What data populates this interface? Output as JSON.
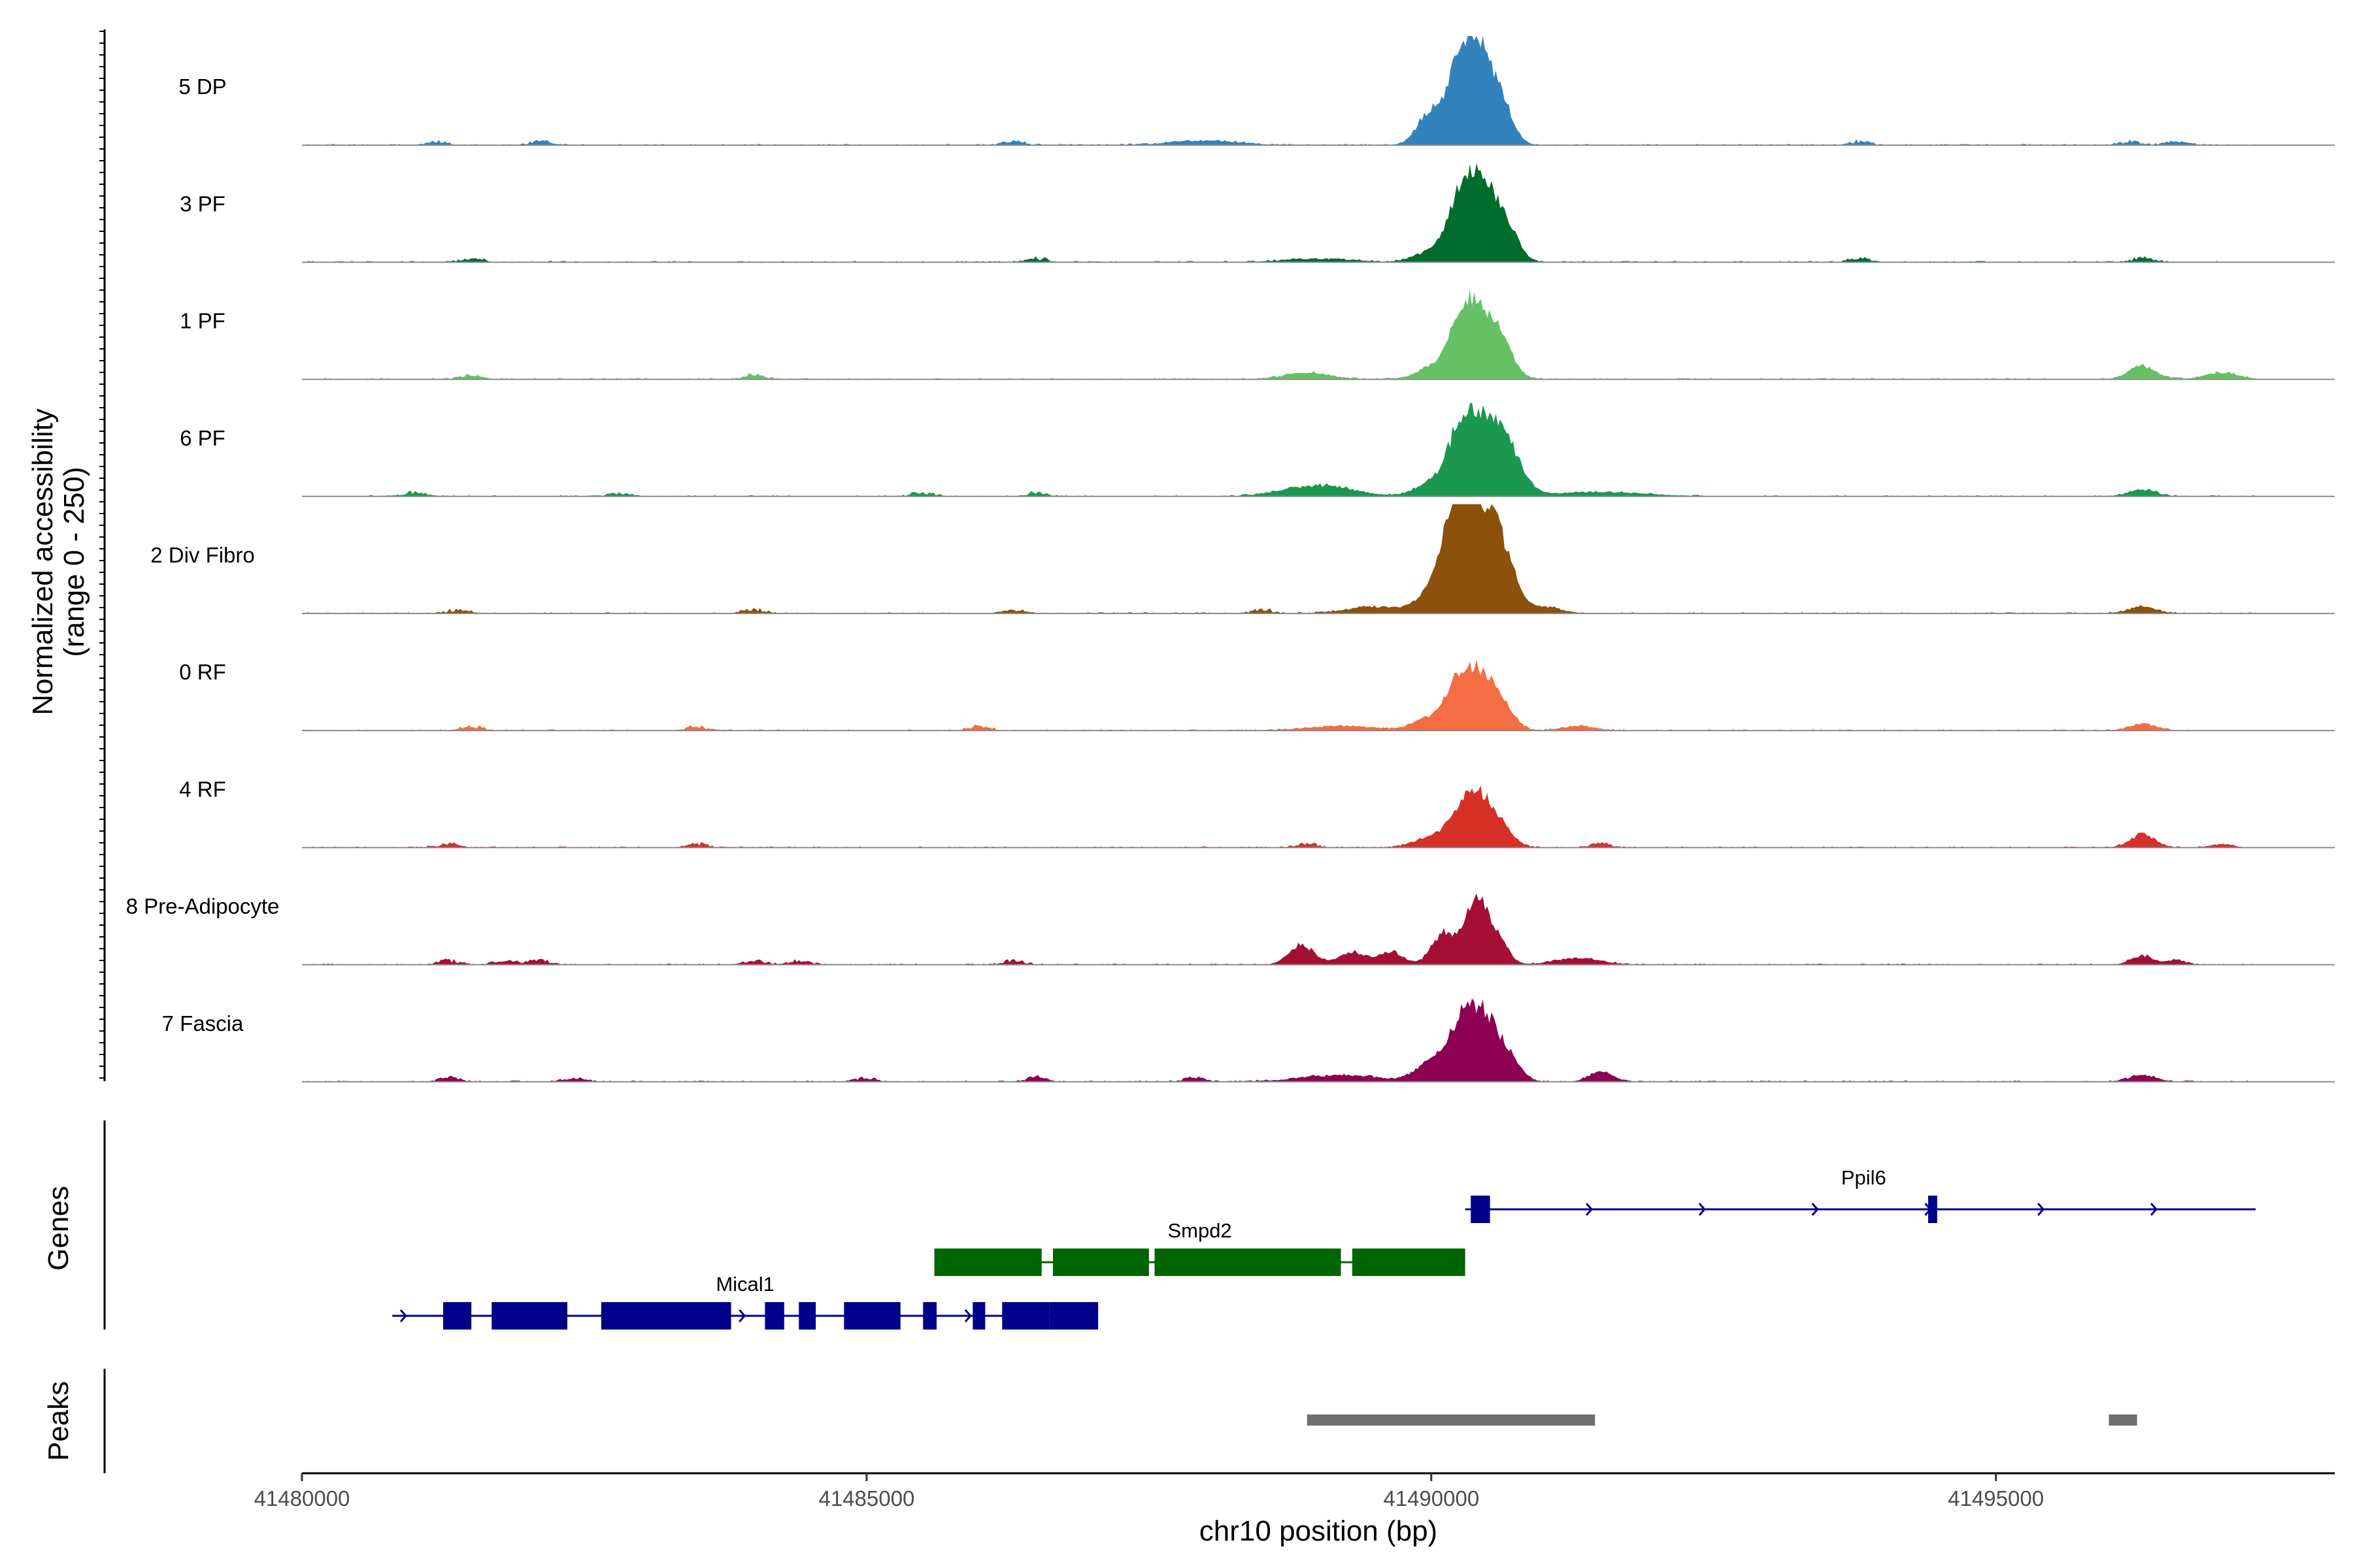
{
  "chart_data": {
    "type": "coverage-track",
    "chromosome": "chr10",
    "xlabel": "chr10 position (bp)",
    "xlim": [
      41480000,
      41498000
    ],
    "x_ticks": [
      41480000,
      41485000,
      41490000,
      41495000
    ],
    "x_tick_labels": [
      "41480000",
      "41485000",
      "41490000",
      "41495000"
    ],
    "y_axis_title_line1": "Normalized accessibility",
    "y_axis_title_line2": "(range 0 - 250)",
    "ylim": [
      0,
      250
    ],
    "genes_panel_title": "Genes",
    "peaks_panel_title": "Peaks",
    "tracks": [
      {
        "name": "5 DP",
        "color": "#3182bd",
        "peak_scale": 1.0,
        "peaks": [
          [
            41489980,
            70,
            110
          ],
          [
            41490250,
            135,
            120
          ],
          [
            41490430,
            200,
            140
          ],
          [
            41490650,
            45,
            100
          ],
          [
            41488000,
            10,
            300
          ]
        ],
        "spikes": [
          41481200,
          41482100,
          41486300,
          41493800,
          41496200,
          41496600
        ]
      },
      {
        "name": "3 PF",
        "color": "#006d2c",
        "peak_scale": 1.0,
        "peaks": [
          [
            41490000,
            25,
            140
          ],
          [
            41490250,
            95,
            110
          ],
          [
            41490450,
            180,
            150
          ],
          [
            41490700,
            40,
            100
          ],
          [
            41489000,
            8,
            300
          ]
        ],
        "spikes": [
          41481500,
          41486500,
          41493800,
          41496300
        ]
      },
      {
        "name": "1 PF",
        "color": "#66c164",
        "peak_scale": 1.0,
        "peaks": [
          [
            41490000,
            25,
            140
          ],
          [
            41490250,
            75,
            110
          ],
          [
            41490420,
            155,
            150
          ],
          [
            41490650,
            45,
            100
          ],
          [
            41488900,
            15,
            200
          ],
          [
            41496300,
            30,
            120
          ],
          [
            41497000,
            15,
            150
          ]
        ],
        "spikes": [
          41481500,
          41484000
        ]
      },
      {
        "name": "6 PF",
        "color": "#1b9850",
        "peak_scale": 1.0,
        "peaks": [
          [
            41490000,
            30,
            140
          ],
          [
            41490250,
            115,
            110
          ],
          [
            41490480,
            175,
            160
          ],
          [
            41490720,
            60,
            120
          ],
          [
            41489000,
            25,
            300
          ],
          [
            41491500,
            10,
            400
          ],
          [
            41496300,
            15,
            120
          ]
        ],
        "spikes": [
          41481000,
          41482800,
          41485500,
          41486500
        ]
      },
      {
        "name": "2 Div Fibro",
        "color": "#8c510a",
        "peak_scale": 1.0,
        "peaks": [
          [
            41490000,
            40,
            130
          ],
          [
            41490200,
            135,
            120
          ],
          [
            41490420,
            250,
            170
          ],
          [
            41490650,
            70,
            110
          ],
          [
            41489500,
            15,
            250
          ],
          [
            41491000,
            15,
            150
          ],
          [
            41496300,
            15,
            120
          ]
        ],
        "spikes": [
          41481400,
          41484000,
          41486300,
          41488500
        ]
      },
      {
        "name": "0 RF",
        "color": "#f46d43",
        "peak_scale": 1.0,
        "peaks": [
          [
            41489950,
            25,
            130
          ],
          [
            41490200,
            70,
            110
          ],
          [
            41490420,
            135,
            140
          ],
          [
            41490650,
            35,
            100
          ],
          [
            41489200,
            10,
            300
          ],
          [
            41491300,
            10,
            150
          ],
          [
            41496300,
            15,
            120
          ]
        ],
        "spikes": [
          41481500,
          41483500,
          41486000
        ]
      },
      {
        "name": "4 RF",
        "color": "#d73027",
        "peak_scale": 1.0,
        "peaks": [
          [
            41489950,
            20,
            130
          ],
          [
            41490200,
            45,
            110
          ],
          [
            41490420,
            120,
            140
          ],
          [
            41490650,
            25,
            100
          ],
          [
            41496300,
            30,
            110
          ],
          [
            41497000,
            8,
            100
          ]
        ],
        "spikes": [
          41481300,
          41483500,
          41488900,
          41491500
        ]
      },
      {
        "name": "8 Pre-Adipocyte",
        "color": "#a50f35",
        "peak_scale": 1.0,
        "peaks": [
          [
            41490100,
            70,
            100
          ],
          [
            41490400,
            140,
            110
          ],
          [
            41490600,
            45,
            90
          ],
          [
            41488850,
            45,
            110
          ],
          [
            41489300,
            30,
            120
          ],
          [
            41489650,
            30,
            100
          ],
          [
            41491300,
            15,
            200
          ],
          [
            41496300,
            20,
            100
          ],
          [
            41496600,
            10,
            80
          ]
        ],
        "spikes": [
          41481300,
          41481800,
          41482100,
          41484000,
          41484400,
          41486300
        ]
      },
      {
        "name": "7 Fascia",
        "color": "#8e0152",
        "peak_scale": 1.0,
        "peaks": [
          [
            41490000,
            45,
            130
          ],
          [
            41490250,
            95,
            110
          ],
          [
            41490450,
            150,
            140
          ],
          [
            41490700,
            40,
            100
          ],
          [
            41489200,
            15,
            350
          ],
          [
            41491500,
            25,
            100
          ],
          [
            41496300,
            15,
            120
          ]
        ],
        "spikes": [
          41481300,
          41482400,
          41485000,
          41486500,
          41487900
        ]
      }
    ],
    "genes": [
      {
        "name": "Mical1",
        "strand": "+",
        "color": "#00008b",
        "start": 41480800,
        "end": 41487050,
        "row": 3,
        "exons": [
          [
            41481250,
            41481500
          ],
          [
            41481680,
            41482350
          ],
          [
            41482650,
            41483800
          ],
          [
            41484100,
            41484270
          ],
          [
            41484400,
            41484550
          ],
          [
            41484800,
            41485300
          ],
          [
            41485500,
            41485620
          ],
          [
            41485940,
            41486050
          ],
          [
            41486200,
            41486620
          ],
          [
            41486620,
            41487050
          ]
        ]
      },
      {
        "name": "Smpd2",
        "strand": "-",
        "color": "#006400",
        "start": 41485600,
        "end": 41490300,
        "row": 2,
        "exons": [
          [
            41485600,
            41486550
          ],
          [
            41486650,
            41487500
          ],
          [
            41487550,
            41489200
          ],
          [
            41489300,
            41490300
          ]
        ]
      },
      {
        "name": "Ppil6",
        "strand": "+",
        "color": "#00008b",
        "start": 41490300,
        "end": 41497300,
        "row": 1,
        "exons": [
          [
            41490350,
            41490520
          ],
          [
            41494400,
            41494480
          ]
        ]
      }
    ],
    "peak_regions": [
      [
        41488900,
        41491450
      ],
      [
        41496000,
        41496250
      ]
    ]
  }
}
